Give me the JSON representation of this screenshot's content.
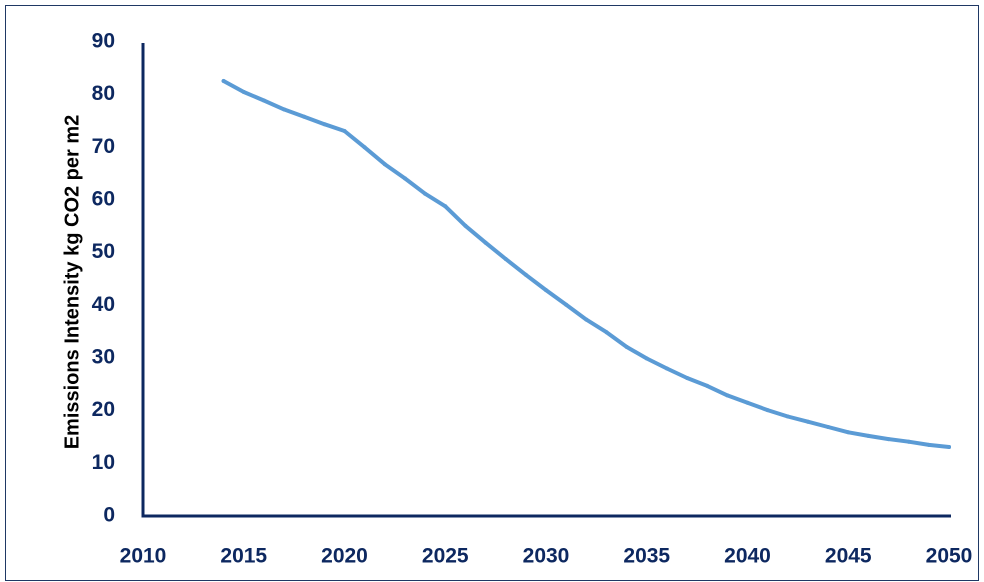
{
  "chart_data": {
    "type": "line",
    "title": "",
    "xlabel": "",
    "ylabel": "Emissions Intensity kg CO2 per m2",
    "xlim": [
      2010,
      2050
    ],
    "ylim": [
      0,
      90
    ],
    "x_ticks": [
      2010,
      2015,
      2020,
      2025,
      2030,
      2035,
      2040,
      2045,
      2050
    ],
    "y_ticks": [
      0,
      10,
      20,
      30,
      40,
      50,
      60,
      70,
      80,
      90
    ],
    "grid": false,
    "legend": "none",
    "series": [
      {
        "color": "#5b9bd5",
        "x": [
          2014,
          2015,
          2016,
          2017,
          2018,
          2019,
          2020,
          2021,
          2022,
          2023,
          2024,
          2025,
          2026,
          2027,
          2028,
          2029,
          2030,
          2031,
          2032,
          2033,
          2034,
          2035,
          2036,
          2037,
          2038,
          2039,
          2040,
          2041,
          2042,
          2043,
          2044,
          2045,
          2046,
          2047,
          2048,
          2049,
          2050
        ],
        "y": [
          82.6,
          80.5,
          78.9,
          77.2,
          75.8,
          74.4,
          73.1,
          70.0,
          66.8,
          64.1,
          61.2,
          58.8,
          55.1,
          51.9,
          48.8,
          45.8,
          42.9,
          40.1,
          37.3,
          34.9,
          32.1,
          29.9,
          28.0,
          26.2,
          24.7,
          22.9,
          21.5,
          20.1,
          18.9,
          17.9,
          16.9,
          15.9,
          15.2,
          14.6,
          14.1,
          13.5,
          13.1
        ]
      }
    ],
    "colors": {
      "axis": "#0d2860",
      "text": "#0d2860",
      "frame": "#1f3864"
    }
  }
}
